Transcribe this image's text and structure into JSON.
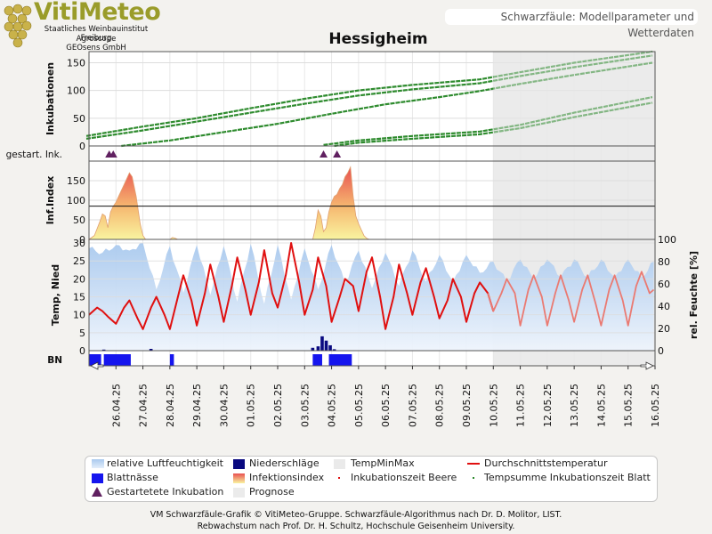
{
  "logo": {
    "title": "VitiMeteo",
    "line1": "Staatliches Weinbauinstitut Freiburg",
    "line2": "Agroscope",
    "line3": "GEOsens GmbH"
  },
  "header": {
    "caption": "Schwarzfäule: Modellparameter und Wetterdaten"
  },
  "station": "Hessigheim",
  "chart_data": {
    "type": "line",
    "x_ticks": [
      "26.04.25",
      "27.04.25",
      "28.04.25",
      "29.04.25",
      "30.04.25",
      "01.05.25",
      "02.05.25",
      "03.05.25",
      "04.05.25",
      "05.05.25",
      "06.05.25",
      "07.05.25",
      "08.05.25",
      "09.05.25",
      "10.05.25",
      "11.05.25",
      "12.05.25",
      "13.05.25",
      "14.05.25",
      "15.05.25",
      "16.05.25"
    ],
    "x_start": "25.04.25",
    "prognosis_from": "10.05.25",
    "panels": {
      "incubation": {
        "ylabel": "Inkubationen",
        "ylim": [
          0,
          170
        ],
        "yticks": [
          0,
          50,
          100,
          150
        ],
        "series": [
          {
            "name": "Inkubationszeit Beere",
            "x": [
              -0.1,
              2,
              4,
              6,
              8,
              10,
              12,
              14.5,
              16,
              18,
              20.9
            ],
            "y": [
              18,
              35,
              50,
              68,
              85,
              100,
              110,
              120,
              133,
              150,
              170
            ]
          },
          {
            "name": "Inkubationszeit Beere",
            "x": [
              -0.1,
              2,
              4,
              6,
              8,
              10,
              12,
              14.5,
              16,
              18,
              20.9
            ],
            "y": [
              13,
              28,
              44,
              60,
              76,
              91,
              102,
              113,
              126,
              142,
              163
            ]
          },
          {
            "name": "Tempsumme Inkubationszeit Blatt",
            "x": [
              1.2,
              3,
              5,
              7,
              9,
              11,
              13,
              14.5,
              16,
              18,
              20.9
            ],
            "y": [
              0,
              10,
              25,
              40,
              58,
              75,
              88,
              99,
              112,
              128,
              150
            ]
          },
          {
            "name": "Inkubationszeit Beere",
            "x": [
              8.7,
              10,
              12,
              14.5,
              16,
              18,
              20.9
            ],
            "y": [
              2,
              10,
              18,
              26,
              38,
              60,
              88
            ]
          },
          {
            "name": "Tempsumme Inkubationszeit Blatt",
            "x": [
              9.1,
              10,
              12,
              14.5,
              16,
              18,
              20.9
            ],
            "y": [
              0,
              6,
              13,
              21,
              32,
              52,
              78
            ]
          }
        ]
      },
      "started_incubations": {
        "ylabel": "gestart. Ink.",
        "x": [
          0.75,
          0.9,
          8.7,
          9.2
        ]
      },
      "infection_index": {
        "ylabel": "Inf.Index",
        "ylim": [
          0,
          200
        ],
        "yticks": [
          0,
          50,
          100,
          150
        ],
        "threshold": 85,
        "x": [
          0,
          0.2,
          0.4,
          0.5,
          0.6,
          0.7,
          0.8,
          0.9,
          1.0,
          1.1,
          1.2,
          1.3,
          1.4,
          1.5,
          1.6,
          1.75,
          1.9,
          2.0,
          2.1,
          3.0,
          3.1,
          3.2,
          3.3,
          8.3,
          8.4,
          8.5,
          8.6,
          8.7,
          8.8,
          8.9,
          9.0,
          9.1,
          9.2,
          9.3,
          9.4,
          9.5,
          9.6,
          9.7,
          9.8,
          9.9,
          10.0,
          10.1,
          10.2,
          10.3,
          10.4
        ],
        "y": [
          0,
          10,
          45,
          65,
          60,
          30,
          70,
          85,
          95,
          110,
          125,
          140,
          155,
          170,
          160,
          110,
          40,
          10,
          0,
          0,
          5,
          3,
          0,
          0,
          30,
          75,
          60,
          20,
          30,
          70,
          95,
          110,
          115,
          130,
          140,
          160,
          170,
          185,
          110,
          60,
          40,
          25,
          10,
          3,
          0
        ]
      },
      "weather": {
        "ylabel": "Temp, Nied",
        "ylim": [
          0,
          31
        ],
        "yticks": [
          0,
          5,
          10,
          15,
          20,
          25,
          30
        ],
        "y2label": "rel. Feuchte [%]",
        "y2lim": [
          0,
          100
        ],
        "y2ticks": [
          0,
          20,
          40,
          60,
          80,
          100
        ],
        "temperature": {
          "name": "Durchschnittstemperatur",
          "x": [
            0,
            0.3,
            0.5,
            0.7,
            1.0,
            1.3,
            1.5,
            1.8,
            2.0,
            2.3,
            2.5,
            2.8,
            3.0,
            3.3,
            3.5,
            3.8,
            4.0,
            4.3,
            4.5,
            4.8,
            5.0,
            5.3,
            5.5,
            5.8,
            6.0,
            6.3,
            6.5,
            6.8,
            7.0,
            7.3,
            7.5,
            7.8,
            8.0,
            8.3,
            8.5,
            8.8,
            9.0,
            9.3,
            9.5,
            9.8,
            10.0,
            10.3,
            10.5,
            10.8,
            11.0,
            11.3,
            11.5,
            11.8,
            12.0,
            12.3,
            12.5,
            12.8,
            13.0,
            13.3,
            13.5,
            13.8,
            14.0,
            14.3,
            14.5,
            14.8,
            15.0,
            15.3,
            15.5,
            15.8,
            16.0,
            16.3,
            16.5,
            16.8,
            17.0,
            17.3,
            17.5,
            17.8,
            18.0,
            18.3,
            18.5,
            18.8,
            19.0,
            19.3,
            19.5,
            19.8,
            20.0,
            20.3,
            20.5,
            20.8,
            20.95
          ],
          "y": [
            10,
            12,
            11,
            9.5,
            7.5,
            12,
            14,
            9,
            6,
            12,
            15,
            10,
            6,
            15,
            21,
            14,
            7,
            16,
            24,
            15,
            8,
            18,
            26,
            17,
            10,
            19,
            28,
            16,
            12,
            21,
            30,
            19,
            10,
            17,
            26,
            18,
            8,
            15,
            20,
            18,
            11,
            22,
            26,
            15,
            6,
            15,
            24,
            16,
            10,
            19,
            23,
            15,
            9,
            14,
            20,
            15,
            8,
            16,
            19,
            16,
            11,
            16,
            20,
            16,
            7,
            17,
            21,
            15,
            7,
            16,
            21,
            14,
            8,
            17,
            21,
            13,
            7,
            17,
            21,
            14,
            7,
            18,
            22,
            16,
            17
          ]
        },
        "humidity": {
          "name": "relative Luftfeuchtigkeit",
          "x": [
            0,
            0.5,
            1.0,
            1.5,
            2.0,
            2.5,
            3.0,
            3.5,
            4.0,
            4.5,
            5.0,
            5.5,
            6.0,
            6.5,
            7.0,
            7.5,
            8.0,
            8.5,
            9.0,
            9.5,
            10.0,
            10.5,
            11.0,
            11.5,
            12.0,
            12.5,
            13.0,
            13.5,
            14.0,
            14.5,
            15.0,
            15.5,
            16.0,
            16.5,
            17.0,
            17.5,
            18.0,
            18.5,
            19.0,
            19.5,
            20.0,
            20.5,
            20.95
          ],
          "y": [
            92,
            88,
            95,
            90,
            97,
            55,
            94,
            52,
            95,
            50,
            94,
            44,
            96,
            42,
            95,
            46,
            92,
            55,
            95,
            60,
            90,
            56,
            88,
            58,
            90,
            62,
            86,
            62,
            86,
            70,
            80,
            62,
            82,
            64,
            82,
            66,
            82,
            66,
            82,
            66,
            82,
            66,
            80
          ]
        },
        "precipitation": {
          "name": "Niederschläge",
          "x": [
            0.55,
            2.3,
            8.3,
            8.5,
            8.65,
            8.8,
            8.95,
            9.1
          ],
          "y": [
            0.3,
            0.5,
            0.8,
            1.2,
            4.0,
            2.8,
            1.5,
            0.4
          ]
        }
      },
      "leaf_wetness": {
        "ylabel": "BN",
        "periods": [
          [
            0.0,
            0.45
          ],
          [
            0.55,
            1.55
          ],
          [
            3.0,
            3.15
          ],
          [
            8.3,
            8.65
          ],
          [
            8.9,
            9.75
          ]
        ]
      }
    },
    "legend": [
      {
        "label": "relative Luftfeuchtigkeit",
        "symbol": "humidity-swatch"
      },
      {
        "label": "Niederschläge",
        "symbol": "precipitation-swatch"
      },
      {
        "label": "TempMinMax",
        "symbol": "tempminmax-swatch"
      },
      {
        "label": "Durchschnittstemperatur",
        "symbol": "temperature-line"
      },
      {
        "label": "Blattnässe",
        "symbol": "leafwetness-swatch"
      },
      {
        "label": "Infektionsindex",
        "symbol": "infection-swatch"
      },
      {
        "label": "Inkubationszeit Beere",
        "symbol": "dot-red"
      },
      {
        "label": "Tempsumme Inkubationszeit Blatt",
        "symbol": "dot-green"
      },
      {
        "label": "Gestartetete Inkubation",
        "symbol": "triangle"
      },
      {
        "label": "Prognose",
        "symbol": "prognosis-swatch"
      }
    ],
    "colors": {
      "incubation_green": "#2e8b2e",
      "prognosis_fill": "#ebebeb",
      "temperature": "#e01010",
      "humidity": "#a9c9ee",
      "precipitation": "#0a0a80",
      "leaf_wetness": "#1515ee",
      "infection_top": "#e85050",
      "infection_bottom": "#f9f4a0",
      "triangle": "#602060"
    }
  },
  "footer": {
    "line1": "VM Schwarzfäule-Grafik © VitiMeteo-Gruppe. Schwarzfäule-Algorithmus nach Dr. D. Molitor, LIST.",
    "line2": "Rebwachstum nach Prof. Dr. H. Schultz, Hochschule Geisenheim University."
  }
}
